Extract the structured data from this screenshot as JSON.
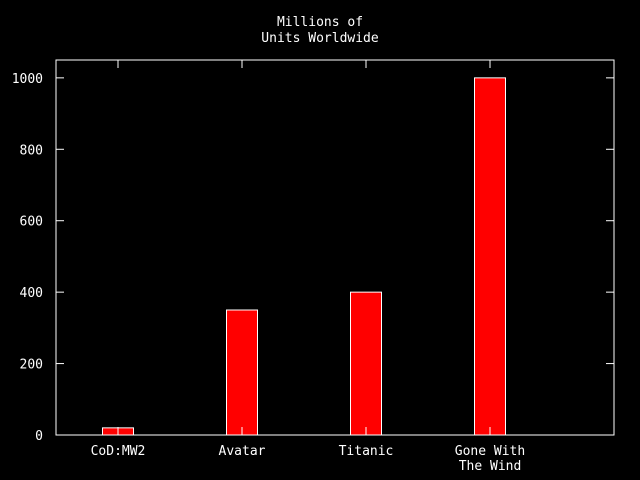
{
  "chart_data": {
    "type": "bar",
    "title": [
      "Millions of",
      "Units Worldwide"
    ],
    "categories": [
      [
        "CoD:MW2"
      ],
      [
        "Avatar"
      ],
      [
        "Titanic"
      ],
      [
        "Gone With",
        "The Wind"
      ]
    ],
    "values": [
      20,
      350,
      400,
      1000
    ],
    "yticks": [
      0,
      200,
      400,
      600,
      800,
      1000
    ],
    "ylim": [
      0,
      1050
    ],
    "xlabel": "",
    "ylabel": "",
    "grid": false,
    "legend": "none",
    "colors": {
      "background": "#000000",
      "bar_fill": "#ff0000",
      "bar_stroke": "#ffffff",
      "axis": "#ffffff",
      "text": "#ffffff"
    }
  }
}
